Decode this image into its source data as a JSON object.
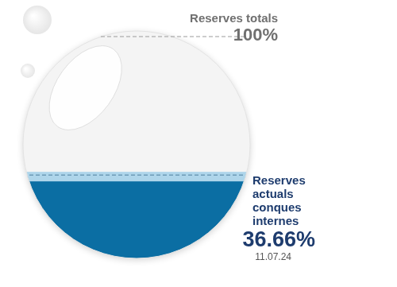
{
  "chart_data": {
    "type": "bar",
    "categories": [
      null
    ],
    "series": [
      {
        "name": "Reserves totals",
        "values": [
          100
        ],
        "value_labels": [
          "100%"
        ],
        "color": "#f4f4f4"
      },
      {
        "name": "Reserves actuals conques internes",
        "values": [
          36.66
        ],
        "value_labels": [
          "36.66%"
        ],
        "color": "#0b6ea3"
      }
    ],
    "annotation": "11.07.24",
    "ylim": [
      0,
      100
    ],
    "tick_labels": false,
    "grid": false,
    "data_labels": true
  }
}
